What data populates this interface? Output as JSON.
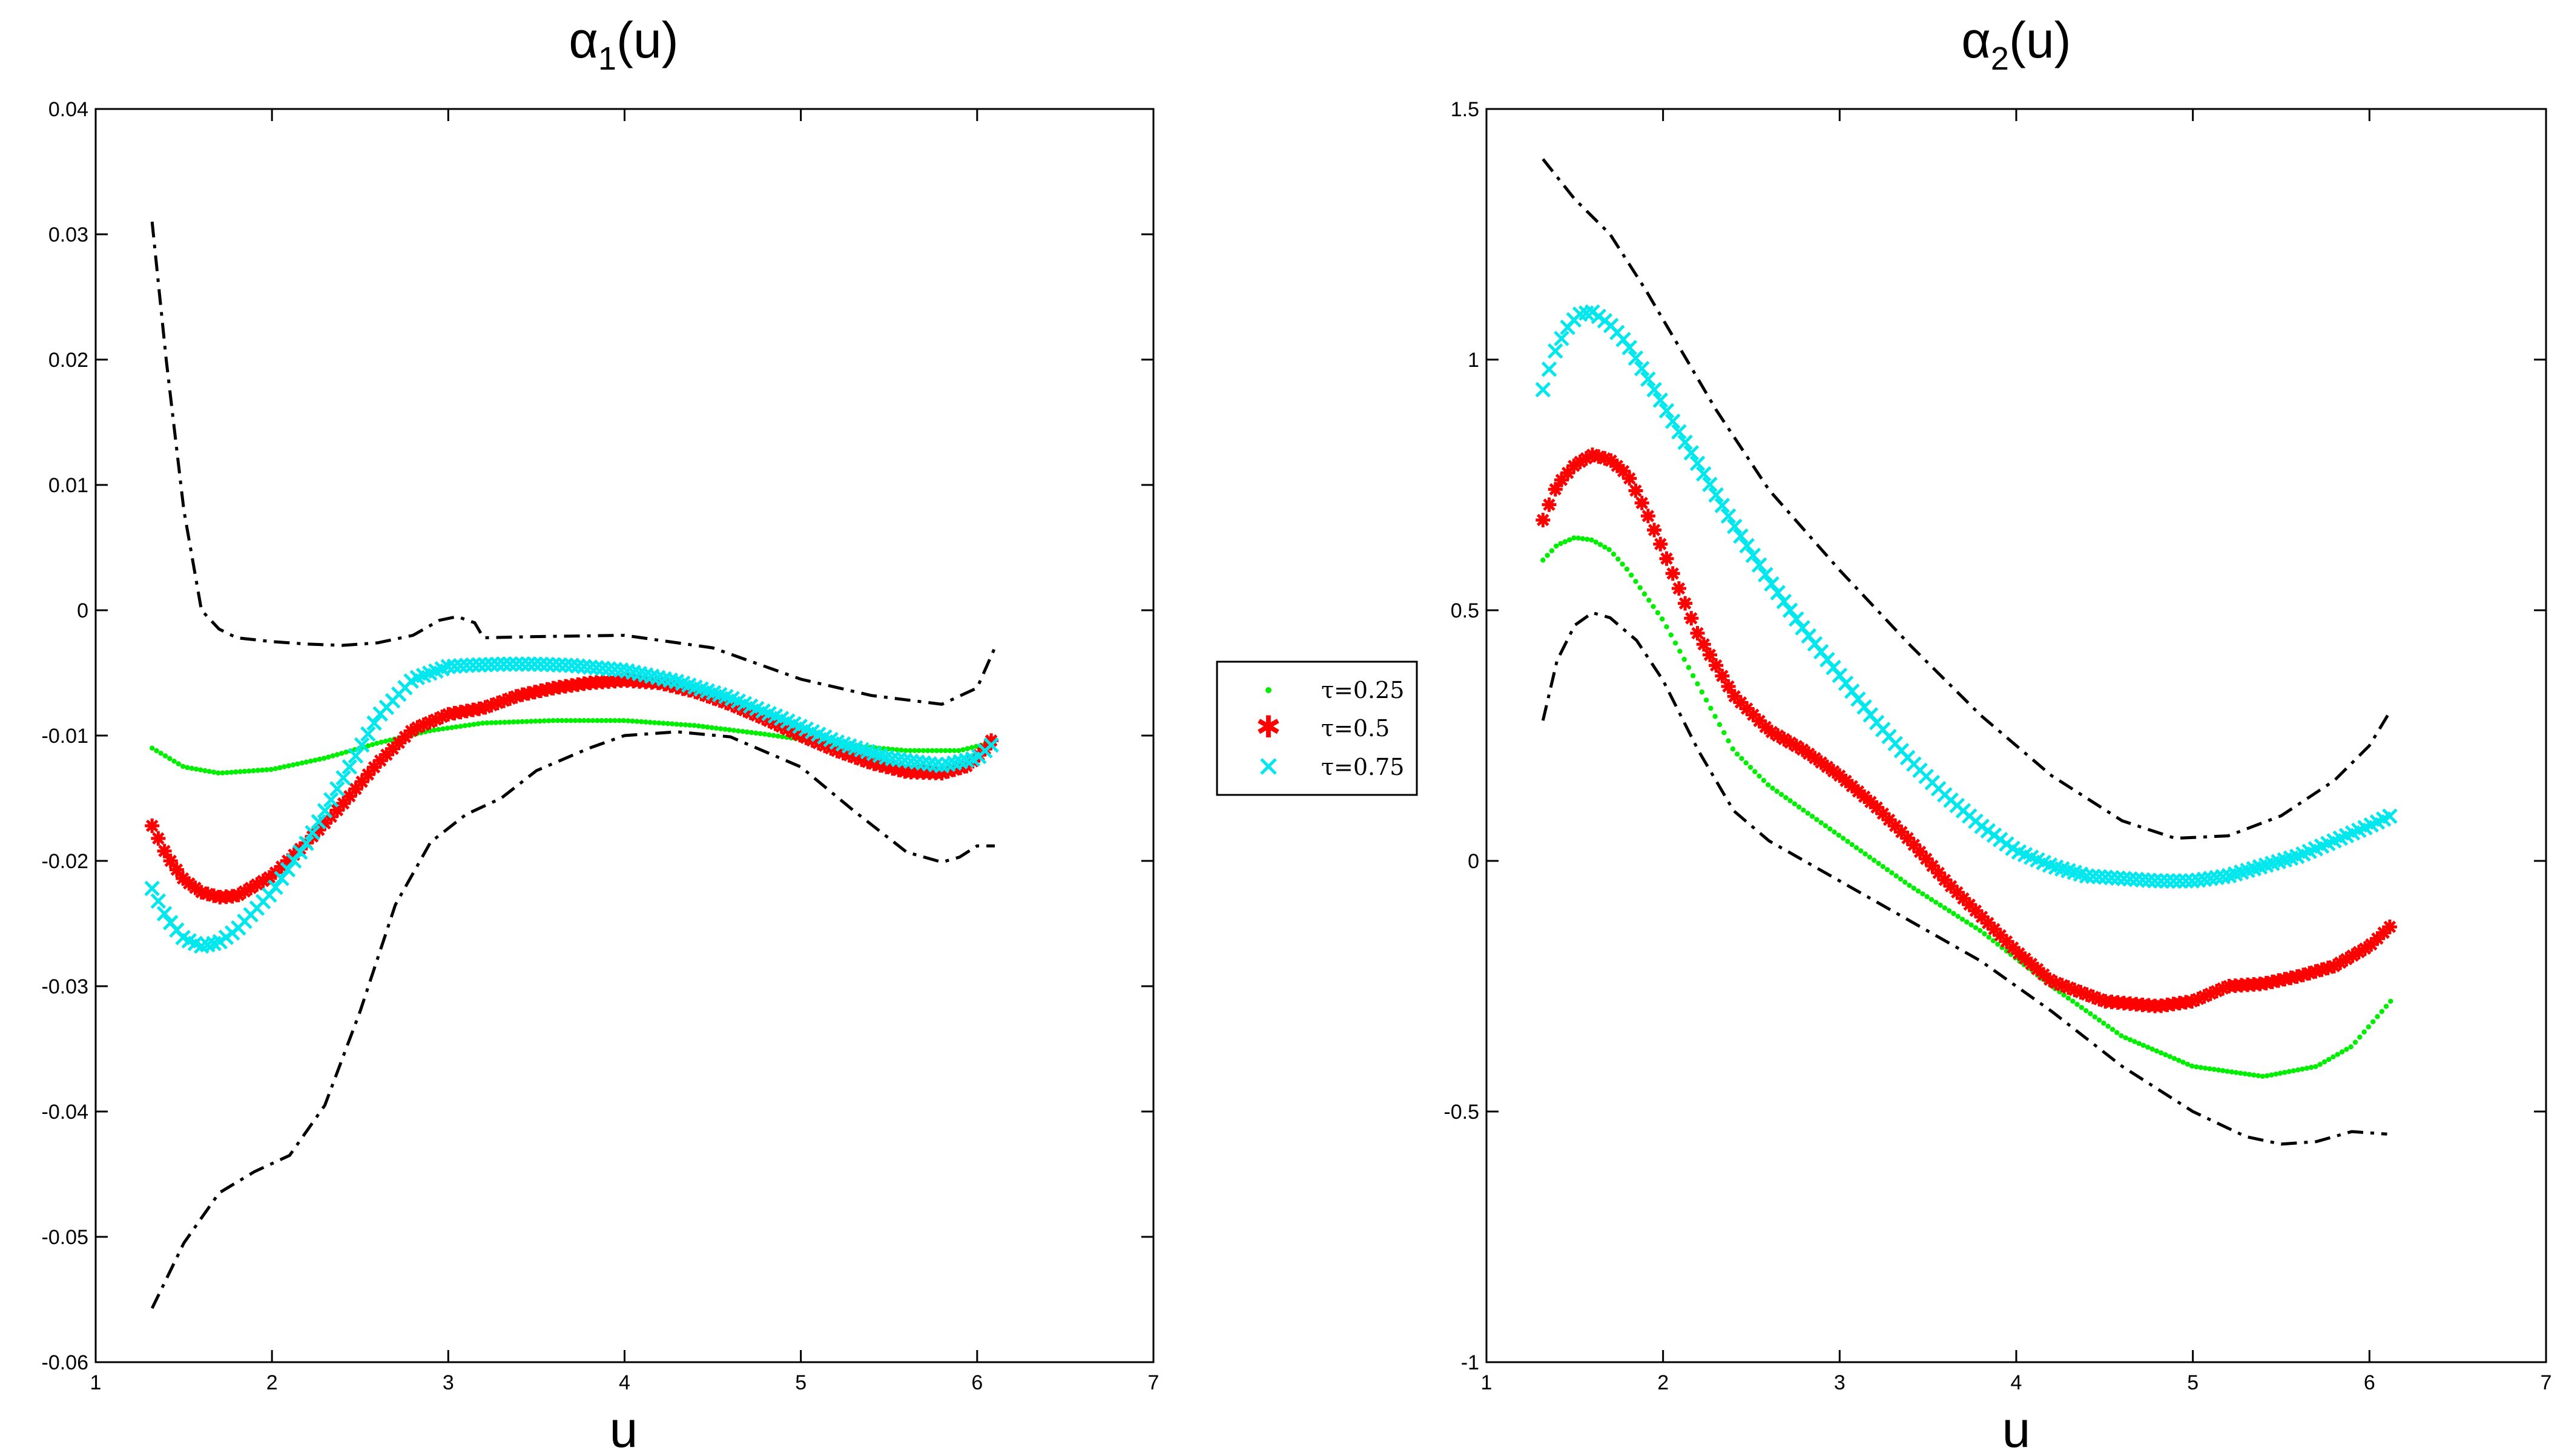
{
  "chart_data": [
    {
      "type": "line",
      "title": {
        "symbol": "α",
        "subscript": "1",
        "suffix": "(u)"
      },
      "xlabel": "u",
      "ylabel": "",
      "xlim": [
        1,
        7
      ],
      "ylim": [
        -0.06,
        0.04
      ],
      "xticks": [
        1,
        2,
        3,
        4,
        5,
        6,
        7
      ],
      "xtick_labels": [
        "1",
        "2",
        "3",
        "4",
        "5",
        "6",
        "7"
      ],
      "yticks": [
        -0.06,
        -0.05,
        -0.04,
        -0.03,
        -0.02,
        -0.01,
        0,
        0.01,
        0.02,
        0.03,
        0.04
      ],
      "ytick_labels": [
        "-0.06",
        "-0.05",
        "-0.04",
        "-0.03",
        "-0.02",
        "-0.01",
        "0",
        "0.01",
        "0.02",
        "0.03",
        "0.04"
      ],
      "series": [
        {
          "name": "upper band",
          "style": "dashdot",
          "color": "#000000",
          "x": [
            1.32,
            1.4,
            1.5,
            1.6,
            1.7,
            1.8,
            2.0,
            2.2,
            2.4,
            2.6,
            2.8,
            2.95,
            3.05,
            3.15,
            3.2,
            3.5,
            4.0,
            4.5,
            5.0,
            5.4,
            5.8,
            6.0,
            6.1
          ],
          "y": [
            0.031,
            0.02,
            0.008,
            0.0,
            -0.0015,
            -0.0022,
            -0.0025,
            -0.0027,
            -0.0028,
            -0.0026,
            -0.002,
            -0.0008,
            -0.0005,
            -0.001,
            -0.0022,
            -0.0021,
            -0.002,
            -0.003,
            -0.0055,
            -0.0068,
            -0.0075,
            -0.0062,
            -0.003
          ]
        },
        {
          "name": "lower band",
          "style": "dashdot",
          "color": "#000000",
          "x": [
            1.32,
            1.5,
            1.7,
            1.9,
            2.1,
            2.3,
            2.5,
            2.7,
            2.9,
            3.1,
            3.3,
            3.5,
            3.8,
            4.0,
            4.3,
            4.6,
            5.0,
            5.3,
            5.6,
            5.8,
            5.9,
            6.0,
            6.1
          ],
          "y": [
            -0.0557,
            -0.0505,
            -0.0465,
            -0.0448,
            -0.0435,
            -0.0395,
            -0.032,
            -0.0235,
            -0.0185,
            -0.0163,
            -0.015,
            -0.0128,
            -0.011,
            -0.01,
            -0.0097,
            -0.0101,
            -0.0125,
            -0.016,
            -0.0193,
            -0.0201,
            -0.0197,
            -0.0188,
            -0.0188
          ]
        },
        {
          "name": "τ=0.25",
          "style": "dots",
          "color": "#00ee00",
          "x": [
            1.32,
            1.5,
            1.7,
            2.0,
            2.3,
            2.6,
            2.9,
            3.2,
            3.6,
            4.0,
            4.4,
            4.8,
            5.2,
            5.6,
            5.9,
            6.1
          ],
          "y": [
            -0.011,
            -0.0125,
            -0.013,
            -0.0127,
            -0.0118,
            -0.0106,
            -0.0096,
            -0.009,
            -0.0088,
            -0.0088,
            -0.0092,
            -0.0099,
            -0.0107,
            -0.0112,
            -0.0112,
            -0.0105
          ]
        },
        {
          "name": "τ=0.5",
          "style": "stars",
          "color": "#ff0000",
          "x": [
            1.32,
            1.4,
            1.5,
            1.6,
            1.7,
            1.8,
            2.0,
            2.2,
            2.4,
            2.6,
            2.8,
            3.0,
            3.2,
            3.4,
            3.6,
            3.8,
            4.0,
            4.2,
            4.4,
            4.6,
            4.8,
            5.0,
            5.2,
            5.4,
            5.6,
            5.8,
            5.95,
            6.05,
            6.1
          ],
          "y": [
            -0.0172,
            -0.0195,
            -0.0215,
            -0.0225,
            -0.0229,
            -0.0228,
            -0.0212,
            -0.0185,
            -0.0155,
            -0.0122,
            -0.0095,
            -0.0083,
            -0.0078,
            -0.0068,
            -0.0062,
            -0.0058,
            -0.0056,
            -0.0058,
            -0.0065,
            -0.0075,
            -0.0087,
            -0.01,
            -0.0112,
            -0.0122,
            -0.0129,
            -0.013,
            -0.0124,
            -0.011,
            -0.01
          ]
        },
        {
          "name": "τ=0.75",
          "style": "crosses",
          "color": "#00e8ee",
          "x": [
            1.32,
            1.4,
            1.5,
            1.6,
            1.7,
            1.8,
            2.0,
            2.2,
            2.4,
            2.6,
            2.8,
            3.0,
            3.1,
            3.3,
            3.5,
            3.7,
            4.0,
            4.3,
            4.6,
            4.9,
            5.2,
            5.5,
            5.8,
            6.0,
            6.1
          ],
          "y": [
            -0.0222,
            -0.0245,
            -0.0262,
            -0.0268,
            -0.0265,
            -0.0255,
            -0.0225,
            -0.0185,
            -0.0135,
            -0.0085,
            -0.0055,
            -0.0045,
            -0.0044,
            -0.0043,
            -0.0043,
            -0.0044,
            -0.0048,
            -0.0057,
            -0.007,
            -0.0087,
            -0.0105,
            -0.0118,
            -0.0124,
            -0.0118,
            -0.0105
          ]
        }
      ]
    },
    {
      "type": "line",
      "title": {
        "symbol": "α",
        "subscript": "2",
        "suffix": "(u)"
      },
      "xlabel": "u",
      "ylabel": "",
      "xlim": [
        1,
        7
      ],
      "ylim": [
        -1,
        1.5
      ],
      "xticks": [
        1,
        2,
        3,
        4,
        5,
        6,
        7
      ],
      "xtick_labels": [
        "1",
        "2",
        "3",
        "4",
        "5",
        "6",
        "7"
      ],
      "yticks": [
        -1,
        -0.5,
        0,
        0.5,
        1,
        1.5
      ],
      "ytick_labels": [
        "-1",
        "-0.5",
        "0",
        "0.5",
        "1",
        "1.5"
      ],
      "series": [
        {
          "name": "upper band",
          "style": "dashdot",
          "color": "#000000",
          "x": [
            1.32,
            1.5,
            1.7,
            1.9,
            2.1,
            2.3,
            2.6,
            3.0,
            3.4,
            3.8,
            4.2,
            4.6,
            4.9,
            5.2,
            5.5,
            5.8,
            6.0,
            6.12
          ],
          "y": [
            1.4,
            1.32,
            1.25,
            1.14,
            1.02,
            0.9,
            0.74,
            0.58,
            0.43,
            0.29,
            0.17,
            0.08,
            0.045,
            0.05,
            0.09,
            0.16,
            0.23,
            0.3
          ]
        },
        {
          "name": "lower band",
          "style": "dashdot",
          "color": "#000000",
          "x": [
            1.32,
            1.4,
            1.5,
            1.6,
            1.7,
            1.85,
            2.0,
            2.2,
            2.4,
            2.6,
            3.0,
            3.4,
            3.8,
            4.2,
            4.6,
            5.0,
            5.3,
            5.5,
            5.7,
            5.9,
            6.1
          ],
          "y": [
            0.28,
            0.4,
            0.47,
            0.495,
            0.485,
            0.44,
            0.36,
            0.22,
            0.1,
            0.04,
            -0.04,
            -0.12,
            -0.2,
            -0.3,
            -0.41,
            -0.5,
            -0.55,
            -0.565,
            -0.56,
            -0.54,
            -0.545
          ]
        },
        {
          "name": "τ=0.25",
          "style": "dots",
          "color": "#00ee00",
          "x": [
            1.32,
            1.4,
            1.5,
            1.6,
            1.7,
            1.8,
            2.0,
            2.2,
            2.4,
            2.6,
            3.0,
            3.4,
            3.8,
            4.2,
            4.6,
            5.0,
            5.4,
            5.7,
            5.9,
            6.12
          ],
          "y": [
            0.6,
            0.63,
            0.645,
            0.64,
            0.62,
            0.58,
            0.48,
            0.35,
            0.22,
            0.15,
            0.05,
            -0.05,
            -0.14,
            -0.25,
            -0.35,
            -0.41,
            -0.43,
            -0.41,
            -0.37,
            -0.28
          ]
        },
        {
          "name": "τ=0.5",
          "style": "stars",
          "color": "#ff0000",
          "x": [
            1.32,
            1.4,
            1.5,
            1.6,
            1.7,
            1.8,
            1.9,
            2.0,
            2.2,
            2.4,
            2.6,
            2.8,
            3.0,
            3.2,
            3.4,
            3.6,
            3.8,
            4.0,
            4.2,
            4.5,
            4.8,
            5.0,
            5.2,
            5.4,
            5.6,
            5.8,
            6.0,
            6.12
          ],
          "y": [
            0.68,
            0.75,
            0.79,
            0.81,
            0.8,
            0.77,
            0.7,
            0.62,
            0.45,
            0.33,
            0.26,
            0.22,
            0.17,
            0.11,
            0.04,
            -0.04,
            -0.11,
            -0.18,
            -0.24,
            -0.28,
            -0.29,
            -0.28,
            -0.25,
            -0.245,
            -0.23,
            -0.21,
            -0.17,
            -0.13
          ]
        },
        {
          "name": "τ=0.75",
          "style": "crosses",
          "color": "#00e8ee",
          "x": [
            1.32,
            1.38,
            1.45,
            1.52,
            1.6,
            1.7,
            1.8,
            1.9,
            2.0,
            2.2,
            2.4,
            2.6,
            2.8,
            3.0,
            3.2,
            3.4,
            3.6,
            3.8,
            4.0,
            4.2,
            4.4,
            4.6,
            4.8,
            5.0,
            5.2,
            5.4,
            5.6,
            5.8,
            6.0,
            6.12
          ],
          "y": [
            0.94,
            1.01,
            1.06,
            1.09,
            1.095,
            1.07,
            1.03,
            0.97,
            0.91,
            0.79,
            0.67,
            0.56,
            0.46,
            0.37,
            0.28,
            0.2,
            0.13,
            0.07,
            0.02,
            -0.01,
            -0.03,
            -0.035,
            -0.04,
            -0.04,
            -0.03,
            -0.01,
            0.01,
            0.04,
            0.07,
            0.09
          ]
        }
      ]
    }
  ],
  "legend": {
    "placement": "center",
    "entries": [
      {
        "label": "τ=0.25",
        "marker": "dot",
        "color": "#00ee00"
      },
      {
        "label": "τ=0.5",
        "marker": "star",
        "color": "#ff0000"
      },
      {
        "label": "τ=0.75",
        "marker": "cross",
        "color": "#00e8ee"
      }
    ]
  }
}
